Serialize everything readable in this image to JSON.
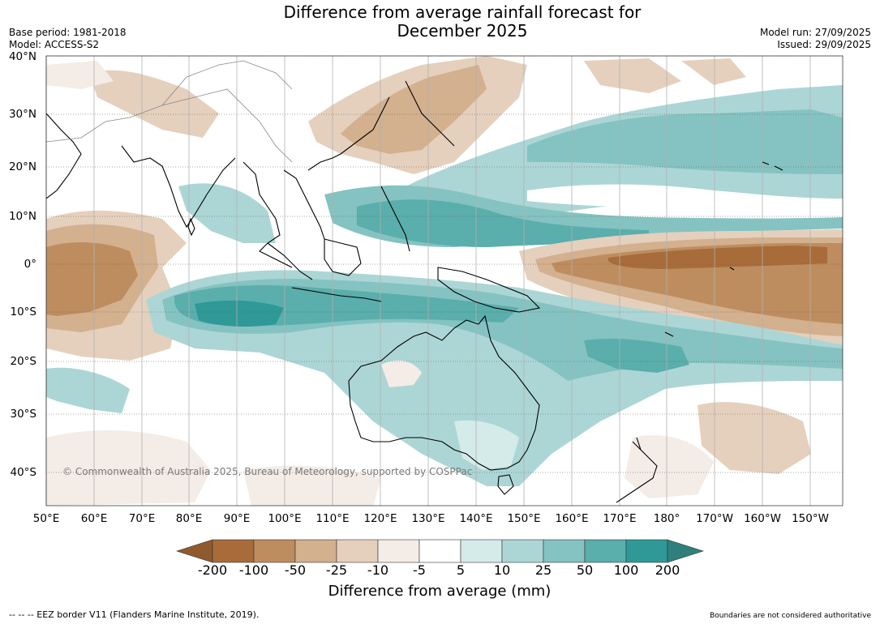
{
  "title_line1": "Difference from average rainfall forecast for",
  "title_line2": "December 2025",
  "base_period": "Base period: 1981-2018",
  "model": "Model: ACCESS-S2",
  "model_run": "Model run: 27/09/2025",
  "issued": "Issued: 29/09/2025",
  "lat_labels": [
    "40°N",
    "30°N",
    "20°N",
    "10°N",
    "0°",
    "10°S",
    "20°S",
    "30°S",
    "40°S"
  ],
  "lon_labels": [
    "50°E",
    "60°E",
    "70°E",
    "80°E",
    "90°E",
    "100°E",
    "110°E",
    "120°E",
    "130°E",
    "140°E",
    "150°E",
    "160°E",
    "170°E",
    "180°",
    "170°W",
    "160°W",
    "150°W"
  ],
  "colorbar": {
    "ticks": [
      "-200",
      "-100",
      "-50",
      "-25",
      "-10",
      "-5",
      "5",
      "10",
      "25",
      "50",
      "100",
      "200"
    ],
    "colors": [
      "#a86c3a",
      "#be8d5f",
      "#d3b08e",
      "#e5d0bd",
      "#f4ece6",
      "#ffffff",
      "#d5ebea",
      "#acd6d5",
      "#84c3c1",
      "#5aaeac",
      "#2e9997"
    ],
    "low_extend_color": "#8f5a2e",
    "high_extend_color": "#2f7f7c",
    "title": "Difference from average (mm)"
  },
  "copyright": "© Commonwealth of Australia 2025, Bureau of Meteorology, supported by COSPPac",
  "footer_left": "--  --  -- EEZ border V11 (Flanders Marine Institute, 2019).",
  "footer_right": "Boundaries are not considered authoritative"
}
